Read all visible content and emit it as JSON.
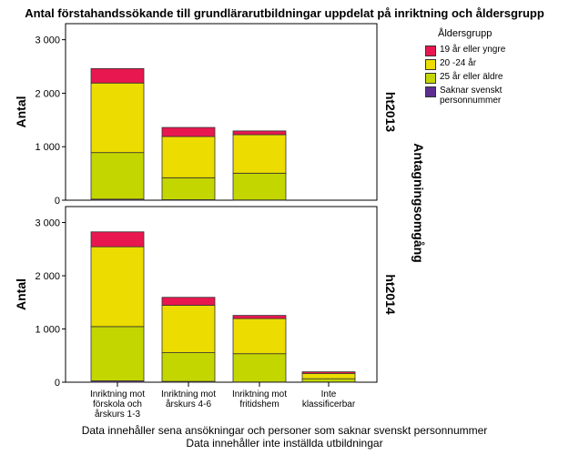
{
  "chart_data": {
    "type": "bar",
    "stacked": true,
    "title": "Antal förstahandssökande till grundlärarutbildningar uppdelat på inriktning och åldersgrupp",
    "categories": [
      "Inriktning mot förskola och årskurs 1-3",
      "Inriktning mot årskurs 4-6",
      "Inriktning mot fritidshem",
      "Inte klassificerbar"
    ],
    "ylabel": "Antal",
    "ylim": [
      0,
      3300
    ],
    "yticks": [
      "0",
      "1 000",
      "2 000",
      "3 000"
    ],
    "facet_label": "Antagningsomgång",
    "legend_title": "Åldersgrupp",
    "legend_position": "top-right",
    "grid": false,
    "series_order": [
      "Saknar svenskt personnummer",
      "25 år eller äldre",
      "20 -24 år",
      "19 år eller yngre"
    ],
    "series": [
      {
        "name": "19 år eller yngre",
        "color": "#e8174f"
      },
      {
        "name": "20 -24 år",
        "color": "#ecdc00"
      },
      {
        "name": "25 år eller äldre",
        "color": "#c4d600"
      },
      {
        "name": "Saknar svenskt personnummer",
        "color": "#5d2d91"
      }
    ],
    "panels": [
      {
        "label": "ht2013",
        "values": {
          "Saknar svenskt personnummer": [
            20,
            10,
            5,
            null
          ],
          "25 år eller äldre": [
            870,
            410,
            500,
            null
          ],
          "20 -24 år": [
            1300,
            770,
            720,
            null
          ],
          "19 år eller yngre": [
            270,
            170,
            70,
            null
          ]
        }
      },
      {
        "label": "ht2014",
        "values": {
          "Saknar svenskt personnummer": [
            25,
            15,
            5,
            5
          ],
          "25 år eller äldre": [
            1020,
            540,
            530,
            60
          ],
          "20 -24 år": [
            1500,
            890,
            660,
            100
          ],
          "19 år eller yngre": [
            280,
            150,
            60,
            30
          ]
        }
      }
    ]
  },
  "footer": {
    "line1": "Data innehåller sena ansökningar och personer som saknar svenskt personnummer",
    "line2": "Data innehåller inte inställda utbildningar"
  }
}
